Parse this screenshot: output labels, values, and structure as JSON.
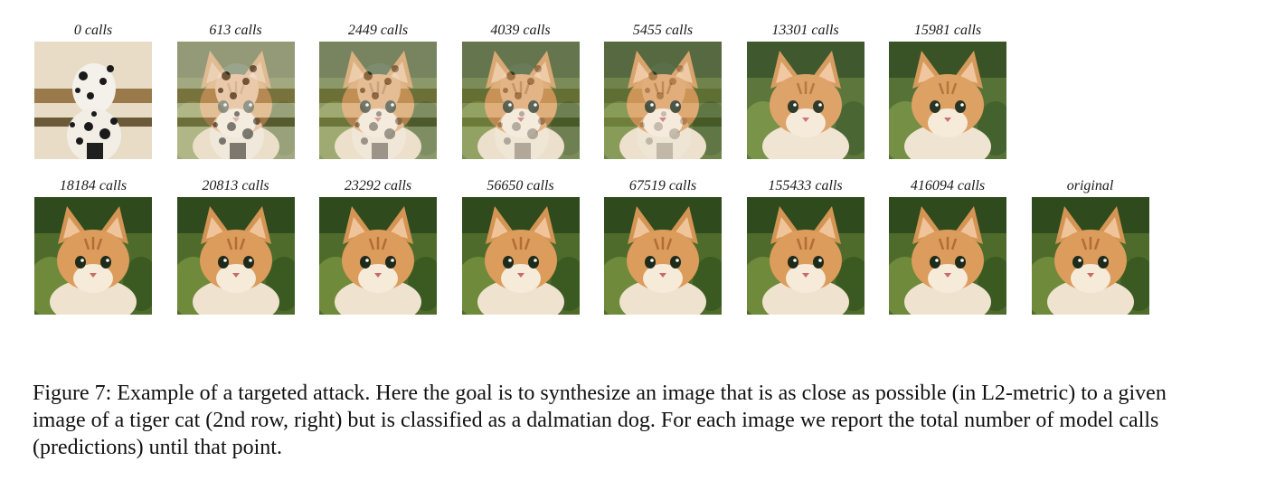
{
  "figure": {
    "rows": [
      [
        {
          "label": "0 calls",
          "content": "dalmatian",
          "cat": 0.0
        },
        {
          "label": "613 calls",
          "content": "blend",
          "cat": 0.45
        },
        {
          "label": "2449 calls",
          "content": "blend",
          "cat": 0.6
        },
        {
          "label": "4039 calls",
          "content": "blend",
          "cat": 0.7
        },
        {
          "label": "5455 calls",
          "content": "blend",
          "cat": 0.78
        },
        {
          "label": "13301 calls",
          "content": "cat",
          "cat": 0.92
        },
        {
          "label": "15981 calls",
          "content": "cat",
          "cat": 0.95
        }
      ],
      [
        {
          "label": "18184 calls",
          "content": "cat",
          "cat": 1.0
        },
        {
          "label": "20813 calls",
          "content": "cat",
          "cat": 1.0
        },
        {
          "label": "23292 calls",
          "content": "cat",
          "cat": 1.0
        },
        {
          "label": "56650 calls",
          "content": "cat",
          "cat": 1.0
        },
        {
          "label": "67519 calls",
          "content": "cat",
          "cat": 1.0
        },
        {
          "label": "155433 calls",
          "content": "cat",
          "cat": 1.0
        },
        {
          "label": "416094 calls",
          "content": "cat",
          "cat": 1.0
        },
        {
          "label": "original",
          "content": "cat",
          "cat": 1.0
        }
      ]
    ],
    "caption": "Figure 7: Example of a targeted attack. Here the goal is to synthesize an image that is as close as possible (in L2-metric) to a given image of a tiger cat (2nd row, right) but is classified as a dalmatian dog. For each image we report the total number of model calls (predictions) until that point."
  }
}
